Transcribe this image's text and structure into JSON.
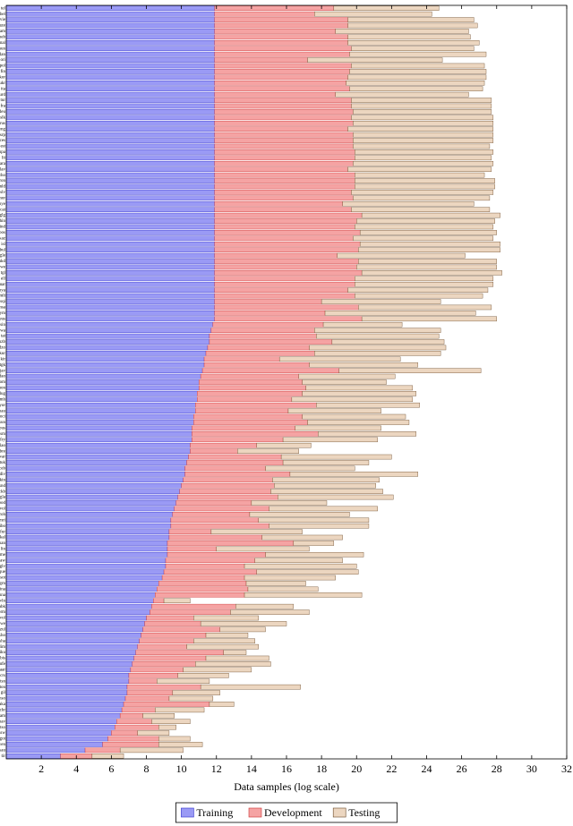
{
  "chart_data": {
    "type": "stacked_barh",
    "xlabel": "Data samples (log scale)",
    "xlim": [
      0,
      32
    ],
    "xticks": [
      2,
      4,
      6,
      8,
      10,
      12,
      14,
      16,
      18,
      20,
      22,
      24,
      26,
      28,
      30,
      32
    ],
    "legend": "bottom",
    "categories": [
      "tel",
      "bel",
      "vie",
      "aze",
      "tam",
      "heb",
      "mal",
      "hun",
      "dan",
      "ori",
      "pol",
      "fin",
      "kor",
      "ukr",
      "ita",
      "urd",
      "tur",
      "fra",
      "deu",
      "slk",
      "rus",
      "eng",
      "srp",
      "ces",
      "est",
      "spa",
      "lit",
      "ara",
      "lav",
      "zho",
      "ron",
      "nld",
      "slv",
      "nor",
      "hye",
      "cat",
      "glg",
      "hin",
      "ind",
      "bos",
      "kaz",
      "isl",
      "bul",
      "gle",
      "mkd",
      "swe",
      "tgl",
      "ell",
      "mar",
      "nya",
      "mlt",
      "sqi",
      "msa",
      "cym",
      "eus",
      "sin",
      "swa",
      "tat",
      "uzb",
      "dzo",
      "kur",
      "kir",
      "tgk",
      "jav",
      "fao",
      "som",
      "mon",
      "lug",
      "amh",
      "yor",
      "hau",
      "oci",
      "sun",
      "pus",
      "asm",
      "fry",
      "lao",
      "bre",
      "war",
      "tuk",
      "ceb",
      "div",
      "kin",
      "snd",
      "ckb",
      "gla",
      "bod",
      "vol",
      "roh",
      "mri",
      "ibo",
      "fur",
      "kal",
      "nan",
      "lin",
      "sme",
      "haw",
      "glv",
      "que",
      "sot",
      "grn",
      "ina",
      "sna",
      "wln",
      "abk",
      "orm",
      "wol",
      "ewe",
      "zul",
      "xho",
      "kha",
      "lim",
      "iku",
      "bis",
      "mfe",
      "aar",
      "crs",
      "tsn",
      "ton",
      "gil",
      "nso",
      "aka",
      "chr",
      "bam",
      "nav",
      "tso",
      "ssw",
      "got",
      "ven",
      "kau",
      "tir"
    ],
    "series": [
      {
        "name": "Training",
        "color": "#9a9af5",
        "stroke": "#3333cc",
        "values": [
          11.9,
          11.9,
          11.9,
          11.9,
          11.9,
          11.9,
          11.9,
          11.9,
          11.9,
          11.9,
          11.9,
          11.9,
          11.9,
          11.9,
          11.9,
          11.9,
          11.9,
          11.9,
          11.9,
          11.9,
          11.9,
          11.9,
          11.9,
          11.9,
          11.9,
          11.9,
          11.9,
          11.9,
          11.9,
          11.9,
          11.9,
          11.9,
          11.9,
          11.9,
          11.9,
          11.9,
          11.9,
          11.9,
          11.9,
          11.9,
          11.9,
          11.9,
          11.9,
          11.9,
          11.9,
          11.9,
          11.9,
          11.9,
          11.9,
          11.9,
          11.9,
          11.9,
          11.9,
          11.9,
          11.9,
          11.8,
          11.7,
          11.6,
          11.6,
          11.5,
          11.4,
          11.3,
          11.3,
          11.2,
          11.1,
          11.0,
          11.0,
          10.9,
          10.9,
          10.8,
          10.8,
          10.7,
          10.7,
          10.6,
          10.6,
          10.6,
          10.5,
          10.5,
          10.4,
          10.3,
          10.2,
          10.2,
          10.1,
          10.0,
          9.9,
          9.8,
          9.7,
          9.6,
          9.5,
          9.4,
          9.4,
          9.3,
          9.3,
          9.2,
          9.2,
          9.2,
          9.1,
          9.1,
          9.0,
          8.9,
          8.7,
          8.6,
          8.5,
          8.4,
          8.3,
          8.2,
          8.0,
          7.9,
          7.8,
          7.7,
          7.6,
          7.5,
          7.4,
          7.3,
          7.2,
          7.1,
          7.0,
          7.0,
          6.9,
          6.9,
          6.8,
          6.7,
          6.6,
          6.5,
          6.3,
          6.2,
          6.0,
          5.8,
          5.5,
          4.5,
          3.1
        ]
      },
      {
        "name": "Development",
        "color": "#f5a3a3",
        "stroke": "#cc3333",
        "values": [
          6.8,
          5.7,
          7.6,
          7.6,
          6.9,
          7.6,
          7.6,
          7.8,
          7.7,
          5.3,
          7.8,
          7.7,
          7.6,
          7.5,
          7.7,
          6.9,
          7.8,
          7.8,
          7.9,
          7.8,
          7.9,
          7.6,
          7.9,
          7.9,
          7.9,
          8.0,
          8.0,
          7.9,
          7.6,
          8.0,
          8.0,
          8.0,
          7.8,
          7.9,
          7.3,
          7.8,
          8.4,
          8.1,
          8.0,
          8.3,
          7.9,
          8.3,
          8.2,
          7.0,
          8.2,
          8.1,
          8.4,
          8.0,
          8.0,
          7.6,
          8.0,
          6.1,
          8.2,
          6.3,
          8.4,
          6.3,
          5.9,
          6.1,
          7.0,
          5.8,
          6.2,
          4.3,
          6.0,
          7.8,
          5.6,
          5.9,
          6.1,
          6.0,
          5.4,
          6.9,
          5.3,
          6.2,
          6.5,
          5.9,
          7.2,
          5.2,
          3.8,
          2.7,
          5.3,
          5.5,
          4.6,
          6.0,
          5.1,
          5.3,
          5.2,
          5.7,
          4.3,
          5.4,
          4.4,
          5.0,
          5.6,
          2.4,
          5.3,
          7.2,
          2.8,
          5.6,
          5.1,
          4.5,
          5.3,
          4.7,
          5.0,
          5.2,
          5.1,
          0.6,
          4.8,
          4.6,
          2.7,
          3.2,
          4.4,
          3.7,
          3.1,
          2.8,
          5.0,
          4.1,
          3.6,
          3.0,
          2.8,
          1.6,
          4.2,
          2.6,
          2.5,
          4.9,
          1.9,
          1.3,
          2.0,
          2.5,
          1.5,
          2.9,
          3.2,
          2.0,
          1.8
        ]
      },
      {
        "name": "Testing",
        "color": "#ecd6c0",
        "stroke": "#6b4a2a",
        "values": [
          6.0,
          6.7,
          7.2,
          7.4,
          7.6,
          7.0,
          7.5,
          7.0,
          7.8,
          7.7,
          7.6,
          7.8,
          7.9,
          7.9,
          7.6,
          7.6,
          8.0,
          8.0,
          7.9,
          8.1,
          8.0,
          8.3,
          8.0,
          8.0,
          7.8,
          7.9,
          7.8,
          8.0,
          8.2,
          7.4,
          8.0,
          8.0,
          8.1,
          7.8,
          7.5,
          7.9,
          7.9,
          7.9,
          7.9,
          7.8,
          8.0,
          8.0,
          8.1,
          7.3,
          7.9,
          8.0,
          8.0,
          7.9,
          7.9,
          8.0,
          7.3,
          6.8,
          7.6,
          8.6,
          7.7,
          4.5,
          7.2,
          7.0,
          6.4,
          7.8,
          7.2,
          6.9,
          6.2,
          8.1,
          5.5,
          4.8,
          6.1,
          6.5,
          6.9,
          5.9,
          5.3,
          5.9,
          5.8,
          4.9,
          5.6,
          5.4,
          3.1,
          3.5,
          6.3,
          4.9,
          5.1,
          7.3,
          6.1,
          5.8,
          6.4,
          6.6,
          4.3,
          6.2,
          5.7,
          6.3,
          5.7,
          5.2,
          4.6,
          2.3,
          5.3,
          5.6,
          5.0,
          6.4,
          5.8,
          5.2,
          3.4,
          4.0,
          6.7,
          1.5,
          3.3,
          4.5,
          3.7,
          4.9,
          2.6,
          2.4,
          3.5,
          4.1,
          1.3,
          3.6,
          4.3,
          3.9,
          2.9,
          3.0,
          5.7,
          2.7,
          2.5,
          1.4,
          2.8,
          1.8,
          2.2,
          1.0,
          1.8,
          1.8,
          2.5,
          3.6,
          1.8
        ]
      }
    ]
  }
}
